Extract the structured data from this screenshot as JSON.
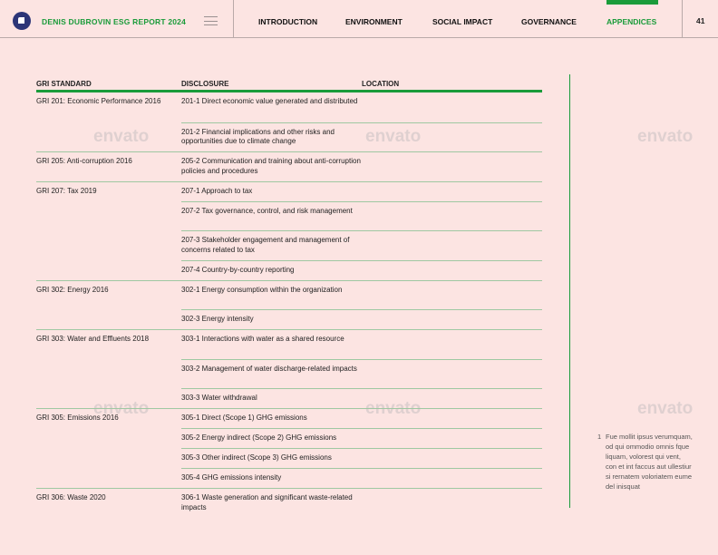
{
  "header": {
    "brand": "DENIS DUBROVIN ESG REPORT 2024",
    "nav": [
      "INTRODUCTION",
      "ENVIRONMENT",
      "SOCIAL IMPACT",
      "GOVERNANCE",
      "APPENDICES"
    ],
    "active": "APPENDICES",
    "page": "41"
  },
  "colors": {
    "accent": "#1a9b3a",
    "background": "#fce4e2",
    "logo": "#2c3577"
  },
  "table": {
    "headers": [
      "GRI STANDARD",
      "DISCLOSURE",
      "LOCATION"
    ],
    "rows": [
      {
        "standard": "GRI 201: Economic Performance 2016",
        "disclosure": "201-1 Direct economic value generated and distributed",
        "location": ""
      },
      {
        "standard": "",
        "disclosure": "201-2 Financial implications and other risks and opportunities due to climate change",
        "location": ""
      },
      {
        "standard": "GRI 205: Anti-corruption 2016",
        "disclosure": "205-2 Communication and training about anti-corruption policies and procedures",
        "location": ""
      },
      {
        "standard": "GRI 207: Tax 2019",
        "disclosure": "207-1 Approach to tax",
        "location": ""
      },
      {
        "standard": "",
        "disclosure": "207-2 Tax governance, control, and risk management",
        "location": ""
      },
      {
        "standard": "",
        "disclosure": "207-3 Stakeholder engagement and management of concerns related to tax",
        "location": ""
      },
      {
        "standard": "",
        "disclosure": "207-4 Country-by-country reporting",
        "location": ""
      },
      {
        "standard": "GRI 302: Energy 2016",
        "disclosure": "302-1 Energy consumption within the organization",
        "location": ""
      },
      {
        "standard": "",
        "disclosure": "302-3 Energy intensity",
        "location": ""
      },
      {
        "standard": "GRI 303: Water and Effluents 2018",
        "disclosure": "303-1 Interactions with water as a shared resource",
        "location": ""
      },
      {
        "standard": "",
        "disclosure": "303-2 Management of water discharge-related impacts",
        "location": ""
      },
      {
        "standard": "",
        "disclosure": "303-3 Water withdrawal",
        "location": ""
      },
      {
        "standard": "GRI 305: Emissions 2016",
        "disclosure": "305-1 Direct (Scope 1) GHG emissions",
        "location": ""
      },
      {
        "standard": "",
        "disclosure": "305-2 Energy indirect (Scope 2) GHG emissions",
        "location": ""
      },
      {
        "standard": "",
        "disclosure": "305-3 Other indirect (Scope 3) GHG emissions",
        "location": ""
      },
      {
        "standard": "",
        "disclosure": "305-4 GHG emissions intensity",
        "location": ""
      },
      {
        "standard": "GRI 306: Waste 2020",
        "disclosure": "306-1 Waste generation and significant waste-related impacts",
        "location": ""
      }
    ]
  },
  "footnote": {
    "number": "1",
    "text": "Fue mollit ipsus verumquam, od qui ommodio omnis fque liquam, volorest qui vent, con et int faccus aut ullestiur si rernatem voloriatem eume del inisquat"
  },
  "watermark": "envato"
}
